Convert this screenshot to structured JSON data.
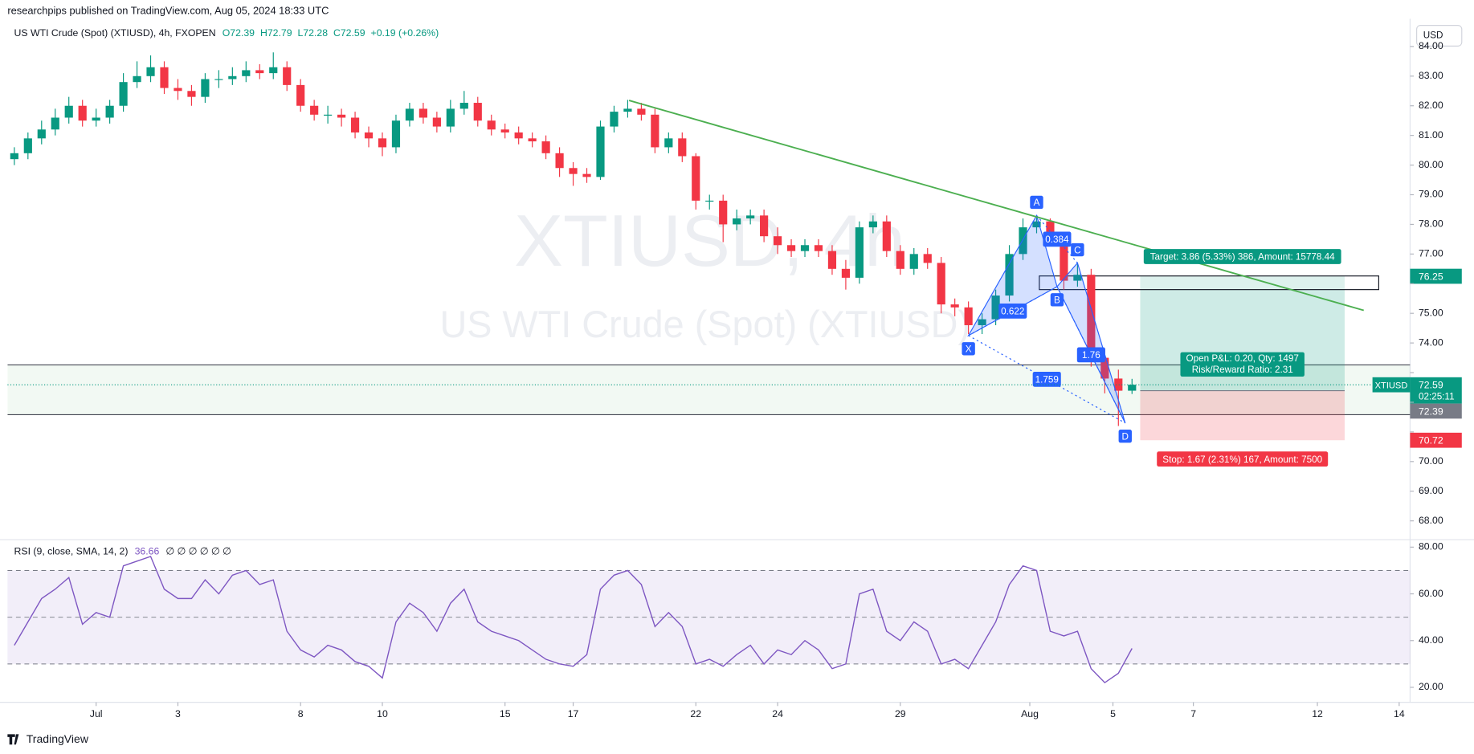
{
  "header": {
    "published": "researchpips published on TradingView.com, Aug 05, 2024 18:33 UTC",
    "currency": "USD",
    "logo": "TradingView",
    "ohlc": [
      "O72.39",
      "H72.79",
      "L72.28",
      "C72.59",
      "+0.19 (+0.26%)"
    ]
  },
  "chart_data": [
    {
      "type": "candlestick",
      "title": "US WTI Crude (Spot) (XTIUSD), 4h, FXOPEN",
      "watermark": [
        "XTIUSD, 4h",
        "US WTI Crude (Spot) (XTIUSD)"
      ],
      "up_color": "#089981",
      "down_color": "#f23645",
      "open": [
        80.2,
        80.4,
        80.9,
        81.2,
        81.6,
        82.0,
        81.5,
        81.6,
        82.0,
        82.8,
        83.0,
        83.3,
        82.6,
        82.5,
        82.3,
        82.9,
        82.9,
        83.0,
        83.2,
        83.1,
        83.3,
        82.7,
        82.0,
        81.7,
        81.7,
        81.6,
        81.1,
        80.9,
        80.6,
        81.5,
        81.9,
        81.6,
        81.3,
        81.9,
        82.1,
        81.5,
        81.2,
        81.1,
        80.9,
        80.8,
        80.4,
        79.9,
        79.7,
        79.6,
        81.3,
        81.8,
        81.9,
        81.7,
        80.6,
        80.9,
        80.3,
        78.8,
        78.8,
        78.0,
        78.2,
        78.3,
        77.6,
        77.3,
        77.1,
        77.3,
        77.1,
        76.5,
        76.2,
        77.9,
        78.1,
        77.1,
        76.5,
        77.0,
        76.7,
        75.3,
        75.2,
        74.6,
        74.8,
        75.6,
        77.0,
        77.9,
        78.1,
        77.5,
        76.1,
        76.3,
        73.5,
        72.8,
        72.39
      ],
      "high": [
        80.6,
        81.1,
        81.5,
        81.9,
        82.3,
        82.2,
        81.9,
        82.2,
        83.1,
        83.5,
        83.7,
        83.5,
        82.9,
        82.7,
        83.1,
        83.2,
        83.3,
        83.5,
        83.4,
        83.8,
        83.5,
        82.9,
        82.2,
        82.0,
        81.9,
        81.8,
        81.3,
        81.1,
        81.7,
        82.1,
        82.1,
        81.8,
        82.2,
        82.5,
        82.3,
        81.7,
        81.4,
        81.3,
        81.1,
        81.0,
        80.6,
        80.1,
        79.9,
        81.5,
        82.0,
        82.2,
        82.1,
        81.9,
        81.1,
        81.1,
        80.4,
        79.0,
        79.0,
        78.5,
        78.5,
        78.5,
        77.9,
        77.5,
        77.5,
        77.5,
        77.3,
        76.8,
        78.1,
        78.3,
        78.3,
        77.3,
        77.2,
        77.2,
        76.9,
        75.5,
        75.4,
        75.0,
        75.8,
        77.3,
        78.2,
        78.3,
        78.2,
        77.6,
        76.7,
        76.5,
        73.8,
        73.1,
        72.79
      ],
      "low": [
        80.0,
        80.2,
        80.7,
        81.0,
        81.4,
        81.3,
        81.3,
        81.4,
        81.8,
        82.6,
        82.8,
        82.4,
        82.2,
        82.0,
        82.1,
        82.6,
        82.7,
        82.8,
        82.9,
        82.9,
        82.5,
        81.8,
        81.5,
        81.4,
        81.3,
        80.9,
        80.6,
        80.3,
        80.4,
        81.3,
        81.4,
        81.1,
        81.1,
        81.7,
        81.3,
        81.0,
        80.9,
        80.7,
        80.6,
        80.2,
        79.6,
        79.3,
        79.4,
        79.5,
        81.1,
        81.6,
        81.5,
        80.4,
        80.4,
        80.1,
        78.5,
        78.5,
        77.4,
        77.8,
        78.0,
        77.4,
        77.0,
        76.9,
        76.9,
        76.9,
        76.3,
        75.8,
        76.0,
        77.7,
        76.9,
        76.3,
        76.3,
        76.5,
        75.0,
        74.9,
        74.3,
        74.3,
        74.6,
        75.4,
        76.8,
        77.7,
        77.3,
        75.8,
        75.9,
        73.2,
        72.3,
        71.2,
        72.28
      ],
      "close": [
        80.4,
        80.9,
        81.2,
        81.6,
        82.0,
        81.5,
        81.6,
        82.0,
        82.8,
        83.0,
        83.3,
        82.6,
        82.5,
        82.3,
        82.9,
        82.9,
        83.0,
        83.2,
        83.1,
        83.3,
        82.7,
        82.0,
        81.7,
        81.7,
        81.6,
        81.1,
        80.9,
        80.6,
        81.5,
        81.9,
        81.6,
        81.3,
        81.9,
        82.1,
        81.5,
        81.2,
        81.1,
        80.9,
        80.8,
        80.4,
        79.9,
        79.7,
        79.6,
        81.3,
        81.8,
        81.9,
        81.7,
        80.6,
        80.9,
        80.3,
        78.8,
        78.8,
        78.0,
        78.2,
        78.3,
        77.6,
        77.3,
        77.1,
        77.3,
        77.1,
        76.5,
        76.2,
        77.9,
        78.1,
        77.1,
        76.5,
        77.0,
        76.7,
        75.3,
        75.2,
        74.6,
        74.8,
        75.6,
        77.0,
        77.9,
        78.1,
        77.5,
        76.1,
        76.3,
        73.5,
        72.8,
        72.39,
        72.59
      ],
      "xlim": [
        -0.5,
        102.4
      ],
      "xticks": [
        {
          "value": 6,
          "label": "Jul"
        },
        {
          "value": 12,
          "label": "3"
        },
        {
          "value": 21,
          "label": "8"
        },
        {
          "value": 27,
          "label": "10"
        },
        {
          "value": 36,
          "label": "15"
        },
        {
          "value": 41,
          "label": "17"
        },
        {
          "value": 50,
          "label": "22"
        },
        {
          "value": 56,
          "label": "24"
        },
        {
          "value": 65,
          "label": "29"
        },
        {
          "value": 74.5,
          "label": "Aug"
        },
        {
          "value": 80.6,
          "label": "5"
        },
        {
          "value": 86.5,
          "label": "7"
        },
        {
          "value": 95.6,
          "label": "12"
        },
        {
          "value": 101.6,
          "label": "14"
        }
      ],
      "ylim": [
        67.43,
        84.87
      ],
      "yticks": [
        {
          "value": 68,
          "label": "68.00"
        },
        {
          "value": 69,
          "label": "69.00"
        },
        {
          "value": 70,
          "label": "70.00"
        },
        {
          "value": 71,
          "label": "71.00"
        },
        {
          "value": 72,
          "label": "72.00"
        },
        {
          "value": 73,
          "label": "73.00"
        },
        {
          "value": 74,
          "label": "74.00"
        },
        {
          "value": 75,
          "label": "75.00"
        },
        {
          "value": 76,
          "label": "76.00"
        },
        {
          "value": 77,
          "label": "77.00"
        },
        {
          "value": 78,
          "label": "78.00"
        },
        {
          "value": 79,
          "label": "79.00"
        },
        {
          "value": 80,
          "label": "80.00"
        },
        {
          "value": 81,
          "label": "81.00"
        },
        {
          "value": 82,
          "label": "82.00"
        },
        {
          "value": 83,
          "label": "83.00"
        },
        {
          "value": 84,
          "label": "84.00"
        }
      ],
      "levels": [
        73.26,
        71.58
      ],
      "trendline": {
        "start_x": 45.1,
        "start_y": 82.18,
        "end_x": 99.0,
        "end_y": 75.1,
        "color": "#4caf50"
      },
      "box": {
        "x0": 75.2,
        "x1": 100.1,
        "top": 76.26,
        "bottom": 75.8
      },
      "position": {
        "x0": 82.6,
        "x1": 97.6,
        "entry": 72.39,
        "target": 76.25,
        "stop": 70.72,
        "target_color": "#089981",
        "stop_color": "#f23645",
        "target_label": "Target: 3.86 (5.33%) 386, Amount: 15778.44",
        "pnl_label": "Open P&L: 0.20, Qty: 1497",
        "rr_label": "Risk/Reward Ratio: 2.31",
        "stop_label": "Stop: 1.67 (2.31%) 167, Amount: 7500"
      },
      "last_label": {
        "symbol": "XTIUSD",
        "countdown": "02:25:11"
      },
      "pattern": {
        "color": "#2962ff",
        "points": [
          {
            "label": "X",
            "x": 70,
            "y": 74.25
          },
          {
            "label": "A",
            "x": 75,
            "y": 78.3
          },
          {
            "label": "B",
            "x": 76.5,
            "y": 75.9
          },
          {
            "label": "C",
            "x": 78,
            "y": 76.7
          },
          {
            "label": "D",
            "x": 81.5,
            "y": 71.3
          }
        ],
        "ratios": [
          "0.622",
          "0.384",
          "1.759",
          "1.76"
        ]
      }
    },
    {
      "type": "line",
      "title": "RSI (9, close, SMA, 14, 2)",
      "placeholders": "∅ ∅ ∅ ∅ ∅ ∅",
      "color": "#7e57c2",
      "values": [
        38,
        48,
        58,
        62,
        67,
        47,
        52,
        50,
        72,
        74,
        76,
        62,
        58,
        58,
        66,
        60,
        68,
        70,
        64,
        66,
        44,
        36,
        33,
        38,
        36,
        31,
        29,
        24,
        48,
        56,
        52,
        44,
        56,
        62,
        48,
        44,
        42,
        40,
        36,
        32,
        30,
        29,
        34,
        62,
        68,
        70,
        64,
        46,
        52,
        46,
        30,
        32,
        29,
        34,
        38,
        30,
        36,
        34,
        40,
        36,
        28,
        30,
        60,
        62,
        44,
        40,
        48,
        44,
        30,
        32,
        28,
        38,
        48,
        64,
        72,
        70,
        44,
        42,
        44,
        28,
        22,
        26,
        36.66
      ],
      "xlim": [
        -0.5,
        102.4
      ],
      "ylim": [
        14.4,
        82.8
      ],
      "yticks": [
        {
          "value": 20,
          "label": "20.00"
        },
        {
          "value": 40,
          "label": "40.00"
        },
        {
          "value": 60,
          "label": "60.00"
        },
        {
          "value": 80,
          "label": "80.00"
        }
      ],
      "bands": {
        "upper": 70,
        "middle": 50,
        "lower": 30
      }
    }
  ]
}
